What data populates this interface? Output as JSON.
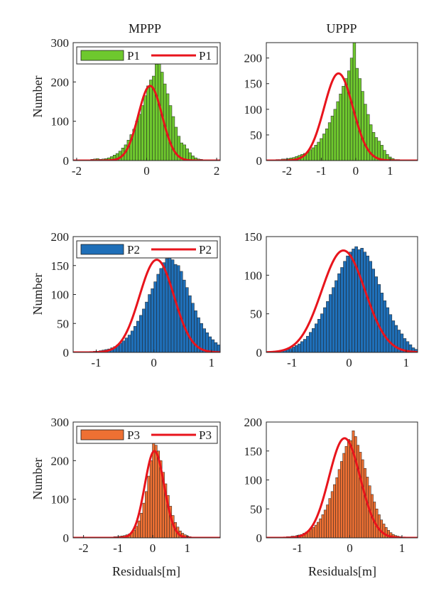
{
  "column_titles": [
    "MPPP",
    "UPPP"
  ],
  "y_label": "Number",
  "x_label": "Residuals[m]",
  "chart_data": [
    {
      "type": "bar",
      "group": "P1",
      "column": "MPPP",
      "xlim": [
        -2.1,
        2.1
      ],
      "ylim": [
        0,
        300
      ],
      "xticks": [
        -2,
        0,
        2
      ],
      "yticks": [
        0,
        100,
        200,
        300
      ],
      "legend": {
        "placement": "top",
        "entries": [
          "P1",
          "P1"
        ]
      },
      "bar_color": "#6ec82e",
      "fit_color": "#e8141c",
      "bin_start": -1.6,
      "bin_width": 0.08,
      "counts": [
        3,
        4,
        5,
        3,
        4,
        5,
        7,
        10,
        14,
        18,
        24,
        32,
        40,
        52,
        66,
        80,
        100,
        118,
        140,
        165,
        190,
        205,
        215,
        245,
        250,
        225,
        195,
        170,
        140,
        112,
        85,
        62,
        45,
        40,
        30,
        20,
        12,
        7,
        4,
        3,
        2,
        2,
        1,
        1,
        0,
        0,
        1
      ],
      "fit": {
        "mean": 0.1,
        "sd": 0.34,
        "peak": 190
      }
    },
    {
      "type": "bar",
      "group": "P1",
      "column": "UPPP",
      "xlim": [
        -2.6,
        1.8
      ],
      "ylim": [
        0,
        230
      ],
      "xticks": [
        -2,
        -1,
        0,
        1
      ],
      "yticks": [
        0,
        50,
        100,
        150,
        200
      ],
      "bar_color": "#6ec82e",
      "fit_color": "#e8141c",
      "bin_start": -2.4,
      "bin_width": 0.08,
      "counts": [
        1,
        2,
        2,
        3,
        3,
        4,
        5,
        6,
        8,
        10,
        12,
        14,
        17,
        21,
        25,
        30,
        36,
        43,
        52,
        62,
        74,
        87,
        100,
        115,
        130,
        145,
        160,
        175,
        200,
        236,
        180,
        160,
        135,
        110,
        90,
        70,
        55,
        45,
        38,
        30,
        20,
        12,
        7,
        4,
        2,
        2,
        1,
        1,
        0,
        0,
        1
      ],
      "fit": {
        "mean": -0.5,
        "sd": 0.42,
        "peak": 170
      }
    },
    {
      "type": "bar",
      "group": "P2",
      "column": "MPPP",
      "xlim": [
        -1.4,
        1.15
      ],
      "ylim": [
        0,
        200
      ],
      "xticks": [
        -1,
        0,
        1
      ],
      "yticks": [
        0,
        50,
        100,
        150,
        200
      ],
      "legend": {
        "placement": "top",
        "entries": [
          "P2",
          "P2"
        ]
      },
      "bar_color": "#1f6fb8",
      "fit_color": "#e8141c",
      "bin_start": -1.2,
      "bin_width": 0.05,
      "counts": [
        1,
        1,
        1,
        2,
        2,
        3,
        4,
        5,
        6,
        8,
        10,
        13,
        16,
        20,
        25,
        30,
        37,
        45,
        54,
        64,
        75,
        87,
        100,
        110,
        122,
        135,
        145,
        155,
        162,
        165,
        160,
        152,
        150,
        140,
        125,
        112,
        98,
        85,
        72,
        60,
        50,
        41,
        34,
        27,
        22,
        17,
        13,
        10,
        7,
        5,
        4,
        3
      ],
      "fit": {
        "mean": 0.05,
        "sd": 0.3,
        "peak": 160
      }
    },
    {
      "type": "bar",
      "group": "P2",
      "column": "UPPP",
      "xlim": [
        -1.45,
        1.2
      ],
      "ylim": [
        0,
        150
      ],
      "xticks": [
        -1,
        0,
        1
      ],
      "yticks": [
        0,
        50,
        100,
        150
      ],
      "bar_color": "#1f6fb8",
      "fit_color": "#e8141c",
      "bin_start": -1.3,
      "bin_width": 0.05,
      "counts": [
        1,
        2,
        2,
        3,
        4,
        5,
        7,
        9,
        11,
        14,
        17,
        21,
        26,
        31,
        37,
        43,
        50,
        58,
        66,
        75,
        84,
        93,
        102,
        110,
        118,
        125,
        130,
        134,
        137,
        133,
        135,
        130,
        125,
        118,
        108,
        98,
        88,
        77,
        67,
        58,
        49,
        41,
        35,
        29,
        24,
        18,
        14,
        10,
        6,
        4,
        3,
        2,
        1,
        1
      ],
      "fit": {
        "mean": -0.1,
        "sd": 0.38,
        "peak": 132
      }
    },
    {
      "type": "bar",
      "group": "P3",
      "column": "MPPP",
      "xlim": [
        -2.3,
        1.95
      ],
      "ylim": [
        0,
        300
      ],
      "xticks": [
        -2,
        -1,
        0,
        1
      ],
      "yticks": [
        0,
        100,
        200,
        300
      ],
      "legend": {
        "placement": "top",
        "entries": [
          "P3",
          "P3"
        ]
      },
      "bar_color": "#ee7033",
      "fit_color": "#e8141c",
      "bin_start": -1.9,
      "bin_width": 0.07,
      "counts": [
        1,
        1,
        0,
        0,
        1,
        1,
        0,
        1,
        1,
        2,
        2,
        3,
        3,
        4,
        5,
        6,
        8,
        10,
        14,
        20,
        30,
        44,
        64,
        90,
        120,
        160,
        200,
        250,
        240,
        225,
        200,
        170,
        140,
        110,
        82,
        58,
        40,
        28,
        18,
        12,
        8,
        5,
        3,
        2,
        1,
        1,
        0,
        1
      ],
      "fit": {
        "mean": 0.05,
        "sd": 0.28,
        "peak": 225
      }
    },
    {
      "type": "bar",
      "group": "P3",
      "column": "UPPP",
      "xlim": [
        -1.6,
        1.3
      ],
      "ylim": [
        0,
        200
      ],
      "xticks": [
        -1,
        0,
        1
      ],
      "yticks": [
        0,
        50,
        100,
        150,
        200
      ],
      "bar_color": "#ee7033",
      "fit_color": "#e8141c",
      "bin_start": -1.35,
      "bin_width": 0.045,
      "counts": [
        1,
        1,
        1,
        2,
        2,
        3,
        3,
        4,
        5,
        6,
        8,
        10,
        12,
        15,
        18,
        22,
        27,
        33,
        40,
        48,
        57,
        68,
        80,
        92,
        104,
        118,
        132,
        146,
        158,
        170,
        168,
        185,
        175,
        160,
        148,
        135,
        120,
        105,
        90,
        75,
        62,
        50,
        40,
        31,
        24,
        18,
        13,
        9,
        6,
        4,
        3,
        2,
        1
      ],
      "fit": {
        "mean": -0.1,
        "sd": 0.3,
        "peak": 172
      }
    }
  ]
}
